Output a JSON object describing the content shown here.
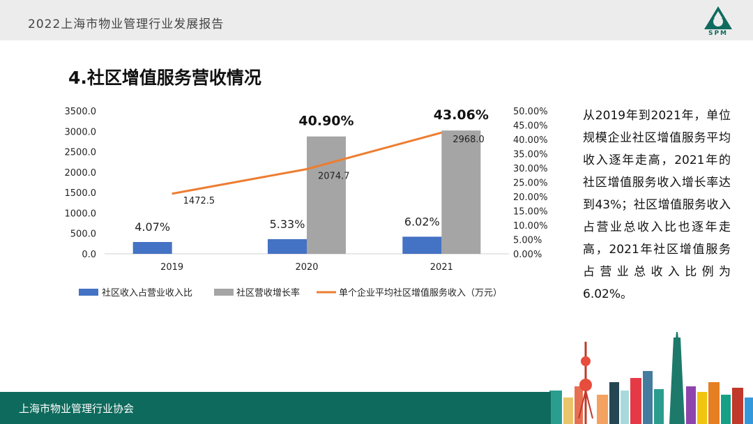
{
  "header": {
    "title": "2022上海市物业管理行业发展报告",
    "logo_text": "SPM"
  },
  "section": {
    "title": "4.社区增值服务营收情况"
  },
  "description": "从2019年到2021年，单位规模企业社区增值服务平均收入逐年走高，2021年的社区增值服务收入增长率达到43%；社区增值服务收入占营业总收入比也逐年走高，2021年社区增值服务占营业总收入比例为6.02%。",
  "footer": {
    "text": "上海市物业管理行业协会"
  },
  "colors": {
    "blue": "#4472c4",
    "gray": "#a5a5a5",
    "orange": "#ed7d31",
    "teal": "#0e6a5c"
  },
  "chart_data": {
    "type": "bar",
    "categories": [
      "2019",
      "2020",
      "2021"
    ],
    "left_axis": {
      "ylim": [
        0,
        3500
      ],
      "ticks": [
        "0.0",
        "500.0",
        "1000.0",
        "1500.0",
        "2000.0",
        "2500.0",
        "3000.0",
        "3500.0"
      ]
    },
    "right_axis": {
      "ylim": [
        0,
        50
      ],
      "ticks": [
        "0.00%",
        "5.00%",
        "10.00%",
        "15.00%",
        "20.00%",
        "25.00%",
        "30.00%",
        "35.00%",
        "40.00%",
        "45.00%",
        "50.00%"
      ]
    },
    "series": [
      {
        "name": "社区收入占营业收入比",
        "kind": "bar",
        "axis": "left",
        "values": [
          290,
          360,
          420
        ],
        "labels": [
          "4.07%",
          "5.33%",
          "6.02%"
        ]
      },
      {
        "name": "社区营收增长率",
        "kind": "bar",
        "axis": "left",
        "values": [
          null,
          2874,
          3020
        ],
        "labels": [
          "",
          "40.90%",
          "43.06%"
        ]
      },
      {
        "name": "单个企业平均社区增值服务收入（万元）",
        "kind": "line",
        "axis": "left",
        "values": [
          1472.5,
          2074.7,
          2968.0
        ],
        "labels": [
          "1472.5",
          "2074.7",
          "2968.0"
        ]
      }
    ],
    "legend_position": "bottom",
    "grid": true
  }
}
